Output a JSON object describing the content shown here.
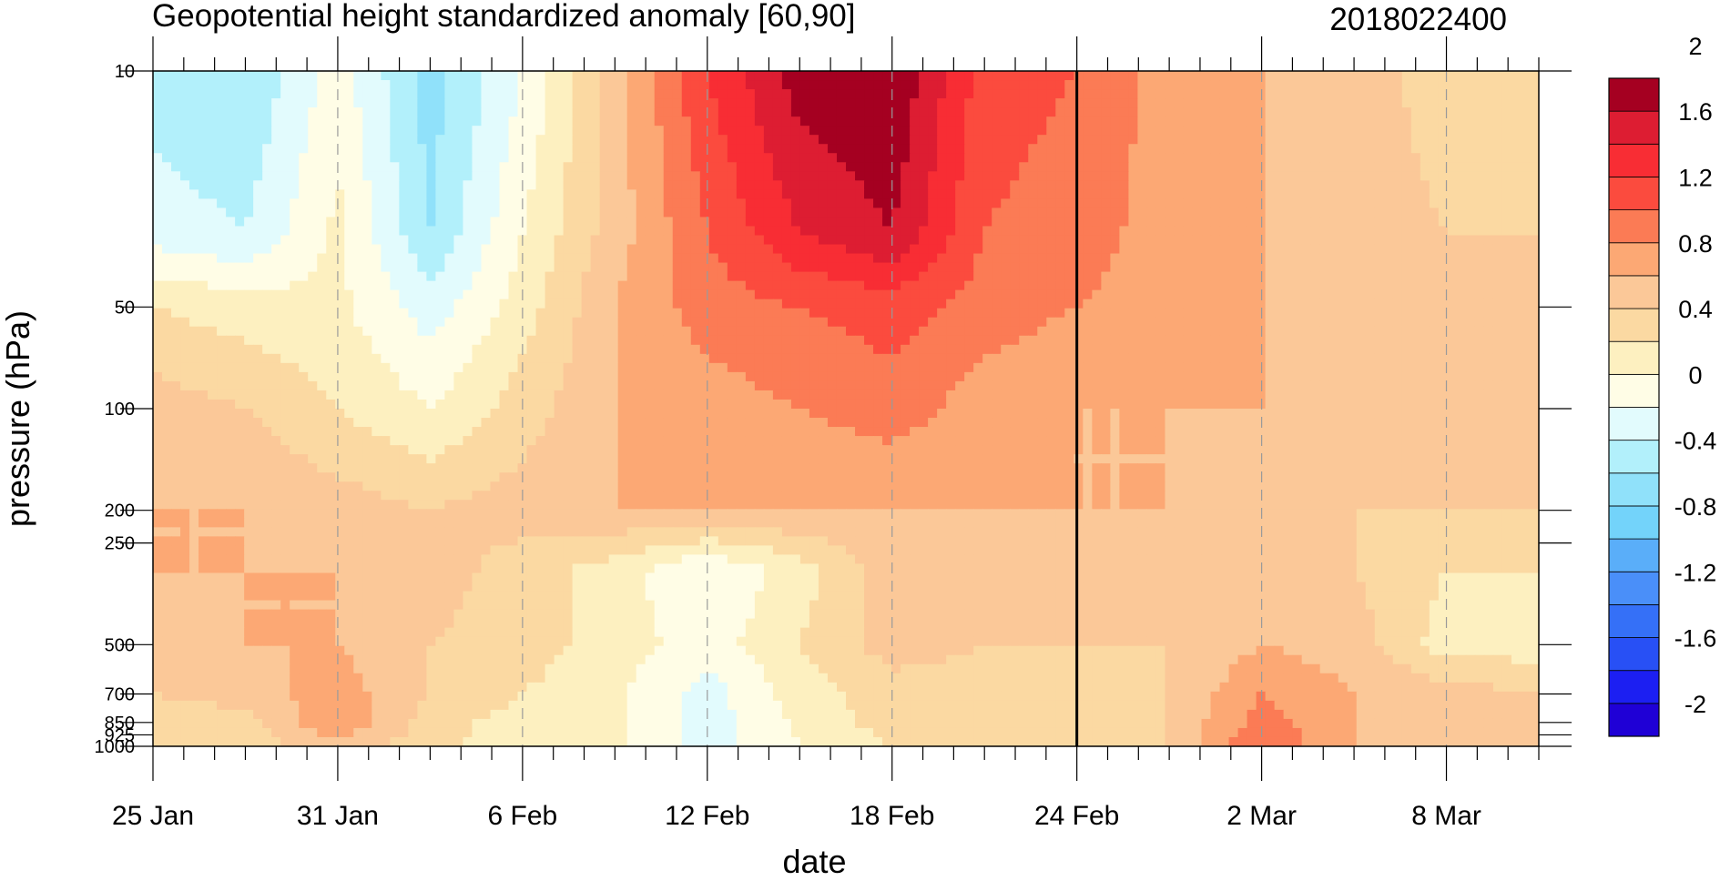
{
  "chart_data": {
    "type": "heatmap",
    "title": "Geopotential height standardized anomaly [60,90]",
    "right_title": "2018022400",
    "xlabel": "date",
    "ylabel": "pressure (hPa)",
    "x_ticks": [
      "25 Jan",
      "31 Jan",
      "6 Feb",
      "12 Feb",
      "18 Feb",
      "24 Feb",
      "2 Mar",
      "8 Mar"
    ],
    "x_tick_days": [
      0,
      6,
      12,
      18,
      24,
      30,
      36,
      42
    ],
    "xlim": [
      0,
      45
    ],
    "y_ticks": [
      10,
      50,
      100,
      200,
      250,
      500,
      700,
      850,
      925,
      1000
    ],
    "y_tick_labels": [
      "10",
      "50",
      "100",
      "200",
      "250",
      "500",
      "700",
      "850",
      "925",
      "1000"
    ],
    "ylim": [
      10,
      1000
    ],
    "y_scale": "log, reversed",
    "analysis_date_marker": "24 Feb",
    "colorbar": {
      "levels": [
        -2.2,
        -2,
        -1.8,
        -1.6,
        -1.4,
        -1.2,
        -1,
        -0.8,
        -0.6,
        -0.4,
        -0.2,
        0,
        0.2,
        0.4,
        0.6,
        0.8,
        1,
        1.2,
        1.4,
        1.6,
        1.8,
        2,
        2.2
      ],
      "labels": [
        "2",
        "1.6",
        "1.2",
        "0.8",
        "0.4",
        "0",
        "-0.4",
        "-0.8",
        "-1.2",
        "-1.6",
        "-2"
      ],
      "colors_low_to_high": [
        "#1f00d6",
        "#1c1ff2",
        "#2850f5",
        "#3570f7",
        "#4a8ff9",
        "#5aaef9",
        "#73d3fa",
        "#90e1fa",
        "#b2f0fb",
        "#e2fbfd",
        "#fffde6",
        "#fdf0c0",
        "#fbd9a2",
        "#fbc898",
        "#fca874",
        "#fb7b55",
        "#fb4b3e",
        "#f82d34",
        "#dd1d32",
        "#a50021"
      ],
      "position": "right"
    },
    "x_days": [
      0,
      3,
      6,
      9,
      12,
      15,
      18,
      21,
      24,
      27,
      30,
      33,
      36,
      39,
      42,
      45
    ],
    "pressure_levels": [
      10,
      30,
      50,
      100,
      200,
      300,
      500,
      700,
      850,
      1000
    ],
    "anomaly_grid": [
      [
        -0.5,
        -0.6,
        -0.1,
        -0.7,
        -0.2,
        0.5,
        1.2,
        1.7,
        1.8,
        1.1,
        1.0,
        0.7,
        0.6,
        0.5,
        0.3,
        0.3
      ],
      [
        -0.3,
        -0.4,
        0.05,
        -0.6,
        0.0,
        0.5,
        1.0,
        1.4,
        1.6,
        1.0,
        0.9,
        0.7,
        0.6,
        0.5,
        0.4,
        0.4
      ],
      [
        0.2,
        0.1,
        0.05,
        -0.3,
        0.1,
        0.6,
        0.9,
        1.0,
        1.1,
        0.9,
        0.8,
        0.7,
        0.6,
        0.5,
        0.5,
        0.5
      ],
      [
        0.5,
        0.4,
        0.2,
        0.0,
        0.3,
        0.6,
        0.7,
        0.8,
        0.9,
        0.7,
        0.6,
        0.6,
        0.6,
        0.5,
        0.5,
        0.5
      ],
      [
        0.6,
        0.6,
        0.5,
        0.4,
        0.5,
        0.6,
        0.6,
        0.6,
        0.6,
        0.6,
        0.6,
        0.6,
        0.5,
        0.4,
        0.4,
        0.4
      ],
      [
        0.6,
        0.6,
        0.6,
        0.5,
        0.3,
        0.1,
        -0.2,
        0.1,
        0.5,
        0.4,
        0.6,
        0.5,
        0.5,
        0.4,
        0.2,
        0.2
      ],
      [
        0.5,
        0.6,
        0.6,
        0.4,
        0.3,
        0.1,
        -0.1,
        0.2,
        0.5,
        0.4,
        0.4,
        0.4,
        0.6,
        0.5,
        0.1,
        0.1
      ],
      [
        0.4,
        0.5,
        0.7,
        0.4,
        0.2,
        0.05,
        -0.3,
        0.1,
        0.3,
        0.3,
        0.3,
        0.4,
        0.8,
        0.6,
        0.5,
        0.4
      ],
      [
        0.3,
        0.3,
        0.8,
        0.3,
        0.1,
        0.05,
        -0.3,
        0.05,
        0.3,
        0.3,
        0.3,
        0.4,
        0.9,
        0.6,
        0.5,
        0.4
      ],
      [
        0.3,
        0.3,
        0.5,
        0.3,
        0.0,
        0.05,
        -0.3,
        0.0,
        0.2,
        0.3,
        0.3,
        0.4,
        1.0,
        0.6,
        0.5,
        0.4
      ]
    ]
  }
}
